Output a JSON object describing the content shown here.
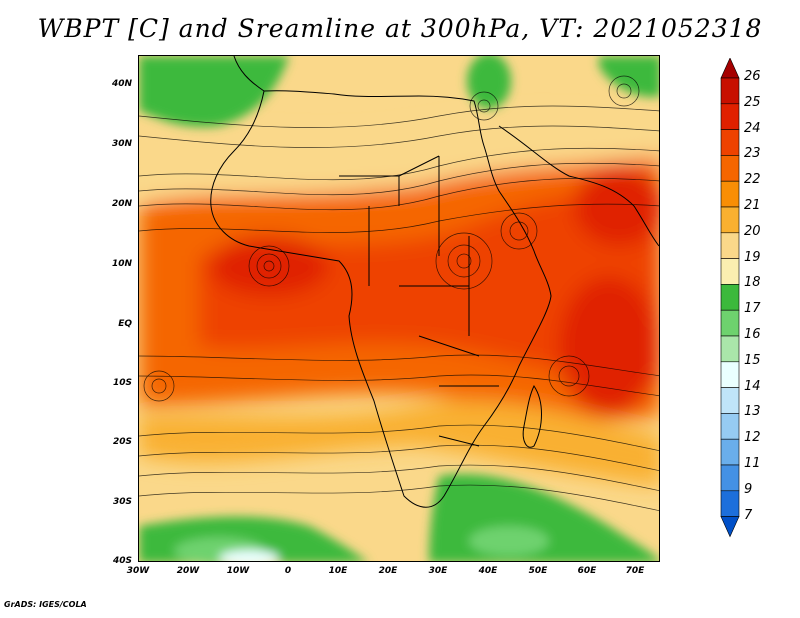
{
  "title": "WBPT [C] and Sreamline at 300hPa, VT: 2021052318",
  "footer": "GrADS: IGES/COLA",
  "lat_labels": [
    "40N",
    "30N",
    "20N",
    "10N",
    "EQ",
    "10S",
    "20S",
    "30S",
    "40S"
  ],
  "lon_labels": [
    "30W",
    "20W",
    "10W",
    "0",
    "10E",
    "20E",
    "30E",
    "40E",
    "50E",
    "60E",
    "70E"
  ],
  "colorbar": {
    "labels": [
      "26",
      "25",
      "24",
      "23",
      "22",
      "21",
      "20",
      "19",
      "18",
      "17",
      "16",
      "15",
      "14",
      "13",
      "12",
      "11",
      "9",
      "7"
    ],
    "colors": [
      "#a50000",
      "#c80f00",
      "#e02000",
      "#ee4200",
      "#f56600",
      "#f98e05",
      "#f9b030",
      "#fad88a",
      "#fbefb0",
      "#3cb93c",
      "#6ed26e",
      "#aae6aa",
      "#eaffff",
      "#c0e4f8",
      "#96cbf2",
      "#6aaeeb",
      "#4491e4",
      "#1d6fdb",
      "#0050c8"
    ]
  },
  "map": {
    "variable": "WBPT",
    "units": "C",
    "level": "300hPa",
    "valid_time": "2021052318",
    "lon_range": [
      -30,
      75
    ],
    "lat_range": [
      -40,
      45
    ],
    "colors": {
      "warm_core": "#ee4200",
      "orange": "#f56600",
      "light_orange": "#f9b030",
      "cream": "#fad88a",
      "green": "#3cb93c",
      "light_green": "#6ed26e",
      "pale": "#eaffff"
    }
  }
}
